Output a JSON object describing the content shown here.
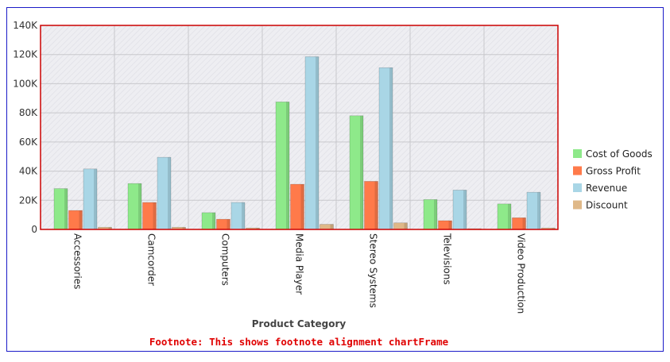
{
  "chart_data": {
    "type": "bar",
    "categories": [
      "Accessories",
      "Camcorder",
      "Computers",
      "Media Player",
      "Stereo Systems",
      "Televisions",
      "Video Production"
    ],
    "series": [
      {
        "name": "Cost of Goods",
        "color": "#8ee98a",
        "values": [
          28000,
          31500,
          11500,
          87500,
          78000,
          20500,
          17500
        ]
      },
      {
        "name": "Gross Profit",
        "color": "#ff7a4a",
        "values": [
          13000,
          18500,
          7000,
          31000,
          33000,
          6000,
          8000
        ]
      },
      {
        "name": "Revenue",
        "color": "#a9d6e6",
        "values": [
          41500,
          49500,
          18500,
          118500,
          111000,
          27000,
          25500
        ]
      },
      {
        "name": "Discount",
        "color": "#dfb888",
        "values": [
          1500,
          1500,
          1000,
          3500,
          4500,
          500,
          1000
        ]
      }
    ],
    "yticks": [
      "0",
      "20K",
      "40K",
      "60K",
      "80K",
      "100K",
      "120K",
      "140K"
    ],
    "ylim": [
      0,
      140000
    ],
    "xlabel": "Product Category",
    "ylabel": "",
    "title": "",
    "footnote": "Footnote: This shows footnote alignment chartFrame",
    "legend_position": "right",
    "grid": true,
    "plot_border_color": "#cc0000",
    "frame_border_color": "#1a1ac8"
  }
}
